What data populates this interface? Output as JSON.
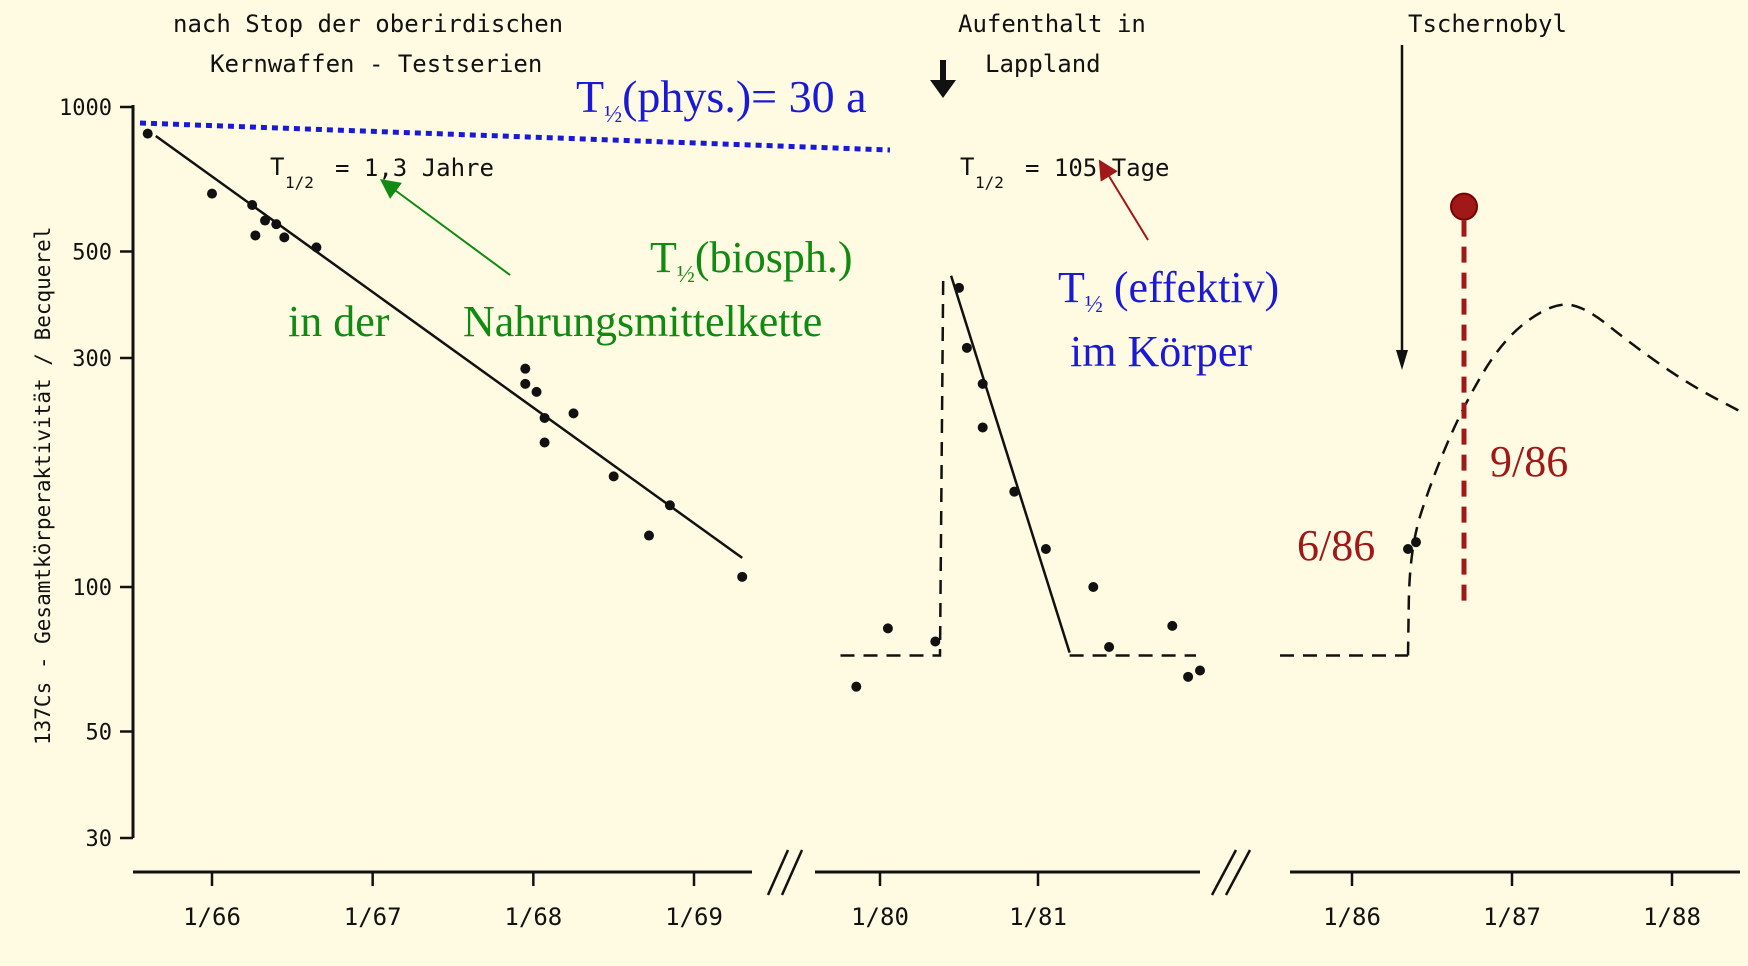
{
  "chart_data": {
    "type": "scatter",
    "title": "",
    "xlabel": "",
    "ylabel": "137Cs - Gesamtkörperaktivität / Becquerel",
    "yscale": "log",
    "ylim": [
      30,
      1000
    ],
    "yticks": [
      "1000",
      "500",
      "300",
      "100",
      "50",
      "30"
    ],
    "axis_breaks": [
      "//",
      "//"
    ],
    "panels": [
      {
        "xticks": [
          "1/66",
          "1/67",
          "1/68",
          "1/69"
        ],
        "xlim": [
          1965.6,
          1969.5
        ],
        "points": [
          [
            1965.6,
            880
          ],
          [
            1966.0,
            660
          ],
          [
            1966.25,
            625
          ],
          [
            1966.27,
            540
          ],
          [
            1966.33,
            580
          ],
          [
            1966.4,
            570
          ],
          [
            1966.45,
            535
          ],
          [
            1966.65,
            510
          ],
          [
            1967.95,
            265
          ],
          [
            1968.02,
            255
          ],
          [
            1968.07,
            225
          ],
          [
            1967.95,
            285
          ],
          [
            1968.07,
            200
          ],
          [
            1968.25,
            230
          ],
          [
            1968.5,
            170
          ],
          [
            1968.72,
            128
          ],
          [
            1968.85,
            148
          ],
          [
            1969.3,
            105
          ]
        ],
        "fit": [
          [
            1965.65,
            870
          ],
          [
            1969.3,
            115
          ]
        ]
      },
      {
        "xticks": [
          "1/80",
          "1/81"
        ],
        "xlim": [
          1979.75,
          1981.9
        ],
        "points": [
          [
            1979.85,
            62
          ],
          [
            1980.05,
            82
          ],
          [
            1980.35,
            77
          ],
          [
            1980.5,
            420
          ],
          [
            1980.55,
            315
          ],
          [
            1980.65,
            265
          ],
          [
            1980.65,
            215
          ],
          [
            1980.85,
            158
          ],
          [
            1981.05,
            120
          ],
          [
            1981.35,
            100
          ],
          [
            1981.45,
            75
          ],
          [
            1981.85,
            83
          ],
          [
            1981.95,
            65
          ]
        ],
        "fit": [
          [
            1980.45,
            445
          ],
          [
            1981.2,
            73
          ]
        ],
        "dashed": [
          [
            1979.75,
            72
          ],
          [
            1980.38,
            72
          ],
          [
            1980.4,
            440
          ]
        ],
        "baseline": [
          [
            1981.2,
            72
          ],
          [
            1982.0,
            72
          ]
        ]
      },
      {
        "xticks": [
          "1/86",
          "1/87",
          "1/88"
        ],
        "xlim": [
          1985.55,
          1988.5
        ],
        "points": [
          [
            1985.05,
            67
          ],
          [
            1986.35,
            120
          ],
          [
            1986.4,
            124
          ]
        ],
        "baseline": [
          [
            1985.55,
            72
          ],
          [
            1986.35,
            72
          ]
        ],
        "curve": [
          [
            1986.35,
            72
          ],
          [
            1986.36,
            120
          ],
          [
            1986.5,
            168
          ],
          [
            1986.7,
            240
          ],
          [
            1986.95,
            330
          ],
          [
            1987.25,
            390
          ],
          [
            1987.45,
            385
          ],
          [
            1987.75,
            320
          ],
          [
            1988.1,
            265
          ],
          [
            1988.45,
            230
          ]
        ],
        "highlight": {
          "x": 1986.7,
          "y": 620,
          "label": "9/86"
        }
      }
    ]
  },
  "annotations": {
    "stop_tests_line1": "nach Stop der oberirdischen",
    "stop_tests_line2": "Kernwaffen - Testserien",
    "lappland_line1": "Aufenthalt in",
    "lappland_line2": "Lappland",
    "chernobyl": "Tschernobyl",
    "t_half_label": "T",
    "t_half_sub": "1/2",
    "t_half_1": "= 1,3 Jahre",
    "t_half_2": "= 105 Tage",
    "phys_T": "T",
    "phys_sub": "½",
    "phys_rest": "(phys.)= 30 a",
    "biosph_T": "T",
    "biosph_sub": "½",
    "biosph_rest": "(biosph.)",
    "food_chain_1": "in der",
    "food_chain_2": "Nahrungsmittelkette",
    "eff_T": "T",
    "eff_sub": "½",
    "eff_rest": " (effektiv)",
    "body": "im Körper",
    "label_686": "6/86",
    "label_986": "9/86"
  },
  "colors": {
    "background": "#fffbe3",
    "ink": "#111111",
    "phys": "#1a1ad6",
    "biosph": "#108a10",
    "effektiv": "#1a1ad6",
    "arrow_red": "#a01818",
    "highlight": "#a01818"
  }
}
